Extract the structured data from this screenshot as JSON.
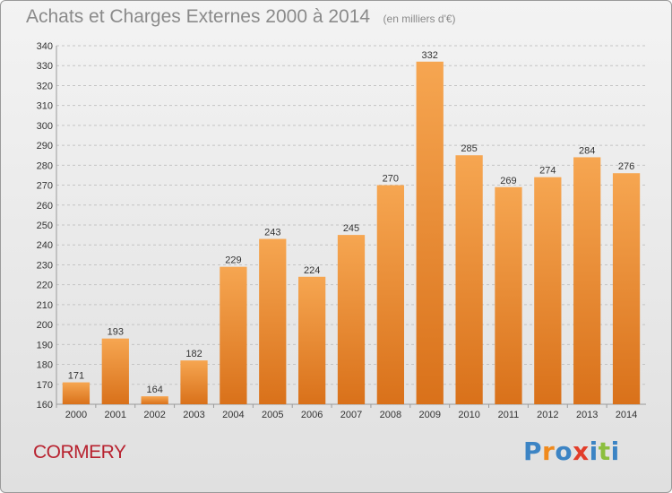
{
  "header": {
    "title": "Achats et Charges Externes 2000 à 2014",
    "unit": "(en milliers d'€)"
  },
  "footer": {
    "commune": "CORMERY",
    "logo_text": "Proxiti"
  },
  "colors": {
    "bar_light": "#f6a651",
    "bar_dark": "#d9711a",
    "commune": "#b8222f",
    "logo": [
      "#3c84c4",
      "#f08a1d",
      "#3c84c4",
      "#e23e2a",
      "#3c84c4",
      "#8cbf3f",
      "#3c84c4"
    ]
  },
  "chart_data": {
    "type": "bar",
    "title": "Achats et Charges Externes 2000 à 2014",
    "subtitle": "(en milliers d'€)",
    "xlabel": "",
    "ylabel": "",
    "categories": [
      "2000",
      "2001",
      "2002",
      "2003",
      "2004",
      "2005",
      "2006",
      "2007",
      "2008",
      "2009",
      "2010",
      "2011",
      "2012",
      "2013",
      "2014"
    ],
    "values": [
      171,
      193,
      164,
      182,
      229,
      243,
      224,
      245,
      270,
      332,
      285,
      269,
      274,
      284,
      276
    ],
    "ylim": [
      160,
      340
    ],
    "ytick_step": 10,
    "grid": "horizontal dashed",
    "legend": "none"
  }
}
